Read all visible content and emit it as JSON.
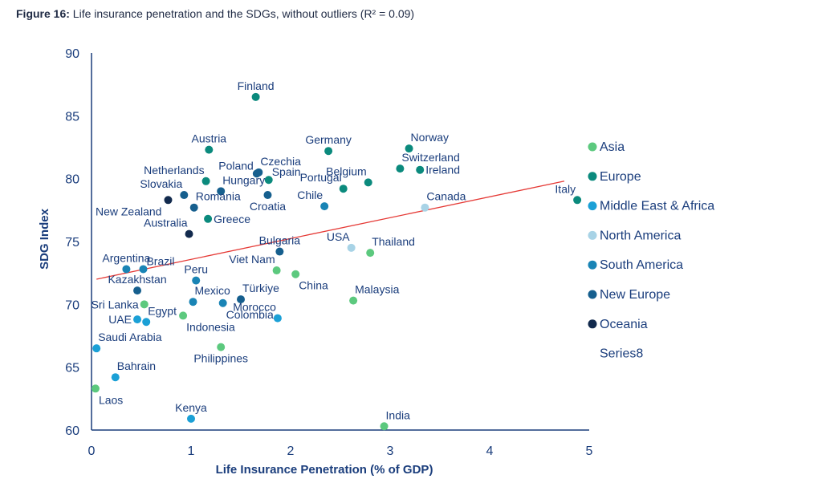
{
  "figure": {
    "label": "Figure 16:",
    "caption": "Life insurance penetration and the SDGs, without outliers (R² = 0.09)"
  },
  "colors": {
    "axis": "#1a3d7c",
    "label": "#1a3d7c",
    "trend": "#e53935",
    "Asia": "#5cc97e",
    "Europe": "#0b8a7d",
    "Middle East & Africa": "#1ba0d6",
    "North America": "#a8d3e6",
    "South America": "#1984b5",
    "New Europe": "#165f8e",
    "Oceania": "#122a4d"
  },
  "chart_data": {
    "type": "scatter",
    "title": "Life insurance penetration and the SDGs, without outliers (R² = 0.09)",
    "xlabel": "Life Insurance Penetration (% of GDP)",
    "ylabel": "SDG Index",
    "xlim": [
      0,
      5
    ],
    "ylim": [
      60,
      90
    ],
    "xticks": [
      "0",
      "1",
      "2",
      "3",
      "4",
      "5"
    ],
    "yticks": [
      "60",
      "65",
      "70",
      "75",
      "80",
      "85",
      "90"
    ],
    "trendline": {
      "x": [
        0.05,
        4.75
      ],
      "y": [
        72.0,
        79.8
      ]
    },
    "legend": {
      "position": "right",
      "entries": [
        {
          "name": "Asia"
        },
        {
          "name": "Europe"
        },
        {
          "name": "Middle East & Africa"
        },
        {
          "name": "North America"
        },
        {
          "name": "South America"
        },
        {
          "name": "New Europe"
        },
        {
          "name": "Oceania"
        },
        {
          "name": "Series8",
          "nomarker": true
        }
      ]
    },
    "points": [
      {
        "label": "Finland",
        "x": 1.65,
        "y": 86.5,
        "group": "Europe",
        "lp": "above"
      },
      {
        "label": "Austria",
        "x": 1.18,
        "y": 82.3,
        "group": "Europe",
        "lp": "above"
      },
      {
        "label": "Germany",
        "x": 2.38,
        "y": 82.2,
        "group": "Europe",
        "lp": "above"
      },
      {
        "label": "Norway",
        "x": 3.19,
        "y": 82.4,
        "group": "Europe",
        "lp": "above-right"
      },
      {
        "label": "Switzerland",
        "x": 3.1,
        "y": 80.8,
        "group": "Europe",
        "lp": "above-right"
      },
      {
        "label": "Ireland",
        "x": 3.3,
        "y": 80.7,
        "group": "Europe",
        "lp": "right"
      },
      {
        "label": "Czechia",
        "x": 1.68,
        "y": 80.5,
        "group": "New Europe",
        "lp": "above-right"
      },
      {
        "label": "Poland",
        "x": 1.66,
        "y": 80.4,
        "group": "New Europe",
        "lp": "left-high"
      },
      {
        "label": "Spain",
        "x": 1.78,
        "y": 79.9,
        "group": "Europe",
        "lp": "right-high"
      },
      {
        "label": "Netherlands",
        "x": 1.15,
        "y": 79.8,
        "group": "Europe",
        "lp": "above-left"
      },
      {
        "label": "Belgium",
        "x": 2.78,
        "y": 79.7,
        "group": "Europe",
        "lp": "above-left"
      },
      {
        "label": "Portugal",
        "x": 2.53,
        "y": 79.2,
        "group": "Europe",
        "lp": "above-left"
      },
      {
        "label": "Slovakia",
        "x": 0.93,
        "y": 78.7,
        "group": "New Europe",
        "lp": "above-left"
      },
      {
        "label": "Hungary",
        "x": 1.3,
        "y": 79.0,
        "group": "New Europe",
        "lp": "above-right"
      },
      {
        "label": "Croatia",
        "x": 1.77,
        "y": 78.7,
        "group": "New Europe",
        "lp": "below"
      },
      {
        "label": "Chile",
        "x": 2.34,
        "y": 77.8,
        "group": "South America",
        "lp": "above-left"
      },
      {
        "label": "Romania",
        "x": 1.03,
        "y": 77.7,
        "group": "New Europe",
        "lp": "above-right"
      },
      {
        "label": "New Zealand",
        "x": 0.77,
        "y": 78.3,
        "group": "Oceania",
        "lp": "below-left"
      },
      {
        "label": "Canada",
        "x": 3.35,
        "y": 77.7,
        "group": "North America",
        "lp": "above-right"
      },
      {
        "label": "Italy",
        "x": 4.88,
        "y": 78.3,
        "group": "Europe",
        "lp": "above-left"
      },
      {
        "label": "Greece",
        "x": 1.17,
        "y": 76.8,
        "group": "Europe",
        "lp": "right"
      },
      {
        "label": "Australia",
        "x": 0.98,
        "y": 75.6,
        "group": "Oceania",
        "lp": "above-left"
      },
      {
        "label": "USA",
        "x": 2.61,
        "y": 74.5,
        "group": "North America",
        "lp": "above-left"
      },
      {
        "label": "Thailand",
        "x": 2.8,
        "y": 74.1,
        "group": "Asia",
        "lp": "above-right"
      },
      {
        "label": "Bulgaria",
        "x": 1.89,
        "y": 74.2,
        "group": "New Europe",
        "lp": "above"
      },
      {
        "label": "Argentina",
        "x": 0.35,
        "y": 72.8,
        "group": "South America",
        "lp": "above"
      },
      {
        "label": "Brazil",
        "x": 0.52,
        "y": 72.8,
        "group": "South America",
        "lp": "right-high"
      },
      {
        "label": "Viet Nam",
        "x": 1.86,
        "y": 72.7,
        "group": "Asia",
        "lp": "above-left"
      },
      {
        "label": "China",
        "x": 2.05,
        "y": 72.4,
        "group": "Asia",
        "lp": "below-right"
      },
      {
        "label": "Peru",
        "x": 1.05,
        "y": 71.9,
        "group": "South America",
        "lp": "above"
      },
      {
        "label": "Kazakhstan",
        "x": 0.46,
        "y": 71.1,
        "group": "New Europe",
        "lp": "above"
      },
      {
        "label": "Türkiye",
        "x": 1.5,
        "y": 70.4,
        "group": "New Europe",
        "lp": "above-right"
      },
      {
        "label": "Malaysia",
        "x": 2.63,
        "y": 70.3,
        "group": "Asia",
        "lp": "above-right"
      },
      {
        "label": "Mexico",
        "x": 1.02,
        "y": 70.2,
        "group": "South America",
        "lp": "above-right"
      },
      {
        "label": "Colombia",
        "x": 1.32,
        "y": 70.1,
        "group": "South America",
        "lp": "below-right"
      },
      {
        "label": "Sri Lanka",
        "x": 0.53,
        "y": 70.0,
        "group": "Asia",
        "lp": "left"
      },
      {
        "label": "Morocco",
        "x": 1.87,
        "y": 68.9,
        "group": "Middle East & Africa",
        "lp": "above-left"
      },
      {
        "label": "Indonesia",
        "x": 0.92,
        "y": 69.1,
        "group": "Asia",
        "lp": "below-right"
      },
      {
        "label": "UAE",
        "x": 0.46,
        "y": 68.8,
        "group": "Middle East & Africa",
        "lp": "left"
      },
      {
        "label": "Egypt",
        "x": 0.55,
        "y": 68.6,
        "group": "Middle East & Africa",
        "lp": "above-right"
      },
      {
        "label": "Saudi Arabia",
        "x": 0.05,
        "y": 66.5,
        "group": "Middle East & Africa",
        "lp": "above-right"
      },
      {
        "label": "Philippines",
        "x": 1.3,
        "y": 66.6,
        "group": "Asia",
        "lp": "below"
      },
      {
        "label": "Bahrain",
        "x": 0.24,
        "y": 64.2,
        "group": "Middle East & Africa",
        "lp": "above-right"
      },
      {
        "label": "Laos",
        "x": 0.04,
        "y": 63.3,
        "group": "Asia",
        "lp": "below-right"
      },
      {
        "label": "Kenya",
        "x": 1.0,
        "y": 60.9,
        "group": "Middle East & Africa",
        "lp": "above"
      },
      {
        "label": "India",
        "x": 2.94,
        "y": 60.3,
        "group": "Asia",
        "lp": "above-right"
      }
    ]
  }
}
